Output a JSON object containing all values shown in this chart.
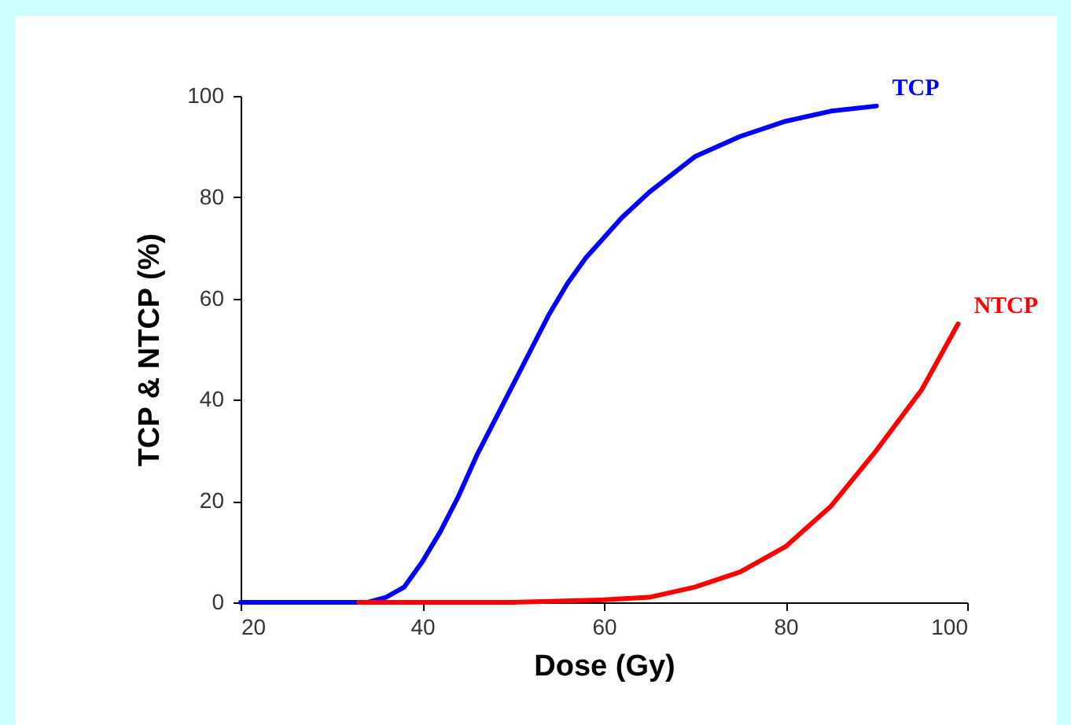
{
  "chart_data": {
    "type": "line",
    "xlabel": "Dose (Gy)",
    "ylabel": "TCP & NTCP (%)",
    "xlim": [
      20,
      100
    ],
    "xticks": [
      20,
      40,
      60,
      80,
      100
    ],
    "ylim": [
      0,
      100
    ],
    "yticks": [
      0,
      20,
      40,
      60,
      80,
      100
    ],
    "grid": false,
    "series": [
      {
        "name": "TCP",
        "color": "#0000ff",
        "x": [
          20,
          30,
          34,
          36,
          38,
          40,
          42,
          44,
          46,
          48,
          50,
          52,
          54,
          56,
          58,
          60,
          62,
          65,
          70,
          75,
          80,
          85,
          90
        ],
        "values": [
          0,
          0,
          0,
          1,
          3,
          8,
          14,
          21,
          29,
          36,
          43,
          50,
          57,
          63,
          68,
          72,
          76,
          81,
          88,
          92,
          95,
          97,
          98
        ]
      },
      {
        "name": "NTCP",
        "color": "#ff0000",
        "x": [
          33,
          40,
          50,
          60,
          65,
          70,
          75,
          80,
          85,
          90,
          95,
          99
        ],
        "values": [
          0,
          0,
          0,
          0.5,
          1,
          3,
          6,
          11,
          19,
          30,
          42,
          55
        ]
      }
    ]
  }
}
